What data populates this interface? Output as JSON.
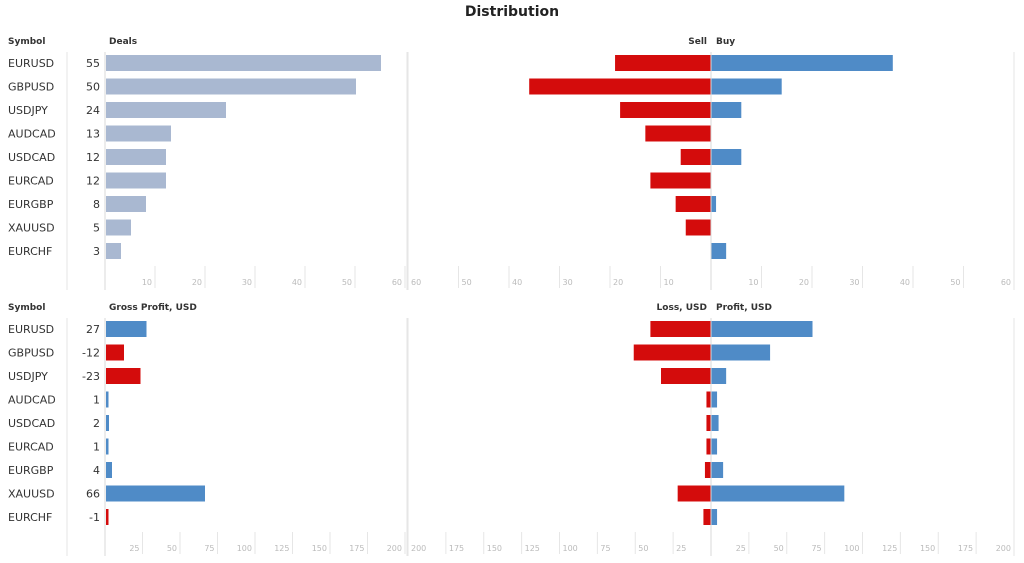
{
  "title": "Distribution",
  "colors": {
    "neutral": "#a9b8d1",
    "positive": "#4f8bc7",
    "negative": "#d40c0c"
  },
  "chart_data": [
    {
      "id": "deals",
      "type": "bar",
      "symbol_header": "Symbol",
      "value_header": "Deals",
      "categories": [
        "EURUSD",
        "GBPUSD",
        "USDJPY",
        "AUDCAD",
        "USDCAD",
        "EURCAD",
        "EURGBP",
        "XAUUSD",
        "EURCHF"
      ],
      "values": [
        55,
        50,
        24,
        13,
        12,
        12,
        8,
        5,
        3
      ],
      "value_labels": [
        "55",
        "50",
        "24",
        "13",
        "12",
        "12",
        "8",
        "5",
        "3"
      ],
      "xlim": [
        0,
        60
      ],
      "ticks": [
        "10",
        "20",
        "30",
        "40",
        "50",
        "60"
      ],
      "tick_values": [
        10,
        20,
        30,
        40,
        50,
        60
      ]
    },
    {
      "id": "sell-buy",
      "type": "bar",
      "left_header": "Sell",
      "right_header": "Buy",
      "categories": [
        "EURUSD",
        "GBPUSD",
        "USDJPY",
        "AUDCAD",
        "USDCAD",
        "EURCAD",
        "EURGBP",
        "XAUUSD",
        "EURCHF"
      ],
      "series": [
        {
          "name": "Sell",
          "values": [
            19,
            36,
            18,
            13,
            6,
            12,
            7,
            5,
            0
          ]
        },
        {
          "name": "Buy",
          "values": [
            36,
            14,
            6,
            0,
            6,
            0,
            1,
            0,
            3
          ]
        }
      ],
      "xlim": [
        0,
        60
      ],
      "left_ticks": [
        "60",
        "50",
        "40",
        "30",
        "20",
        "10"
      ],
      "right_ticks": [
        "10",
        "20",
        "30",
        "40",
        "50",
        "60"
      ],
      "tick_values": [
        10,
        20,
        30,
        40,
        50,
        60
      ]
    },
    {
      "id": "gross-profit",
      "type": "bar",
      "symbol_header": "Symbol",
      "value_header": "Gross Profit, USD",
      "categories": [
        "EURUSD",
        "GBPUSD",
        "USDJPY",
        "AUDCAD",
        "USDCAD",
        "EURCAD",
        "EURGBP",
        "XAUUSD",
        "EURCHF"
      ],
      "values": [
        27,
        -12,
        -23,
        1,
        2,
        1,
        4,
        66,
        -1
      ],
      "value_labels": [
        "27",
        "-12",
        "-23",
        "1",
        "2",
        "1",
        "4",
        "66",
        "-1"
      ],
      "xlim": [
        0,
        200
      ],
      "ticks": [
        "25",
        "50",
        "75",
        "100",
        "125",
        "150",
        "175",
        "200"
      ],
      "tick_values": [
        25,
        50,
        75,
        100,
        125,
        150,
        175,
        200
      ]
    },
    {
      "id": "loss-profit",
      "type": "bar",
      "left_header": "Loss, USD",
      "right_header": "Profit, USD",
      "categories": [
        "EURUSD",
        "GBPUSD",
        "USDJPY",
        "AUDCAD",
        "USDCAD",
        "EURCAD",
        "EURGBP",
        "XAUUSD",
        "EURCHF"
      ],
      "series": [
        {
          "name": "Loss, USD",
          "values": [
            40,
            51,
            33,
            3,
            3,
            3,
            4,
            22,
            5
          ]
        },
        {
          "name": "Profit, USD",
          "values": [
            67,
            39,
            10,
            4,
            5,
            4,
            8,
            88,
            4
          ]
        }
      ],
      "xlim": [
        0,
        200
      ],
      "left_ticks": [
        "200",
        "175",
        "150",
        "125",
        "100",
        "75",
        "50",
        "25"
      ],
      "right_ticks": [
        "25",
        "50",
        "75",
        "100",
        "125",
        "150",
        "175",
        "200"
      ],
      "tick_values": [
        25,
        50,
        75,
        100,
        125,
        150,
        175,
        200
      ]
    }
  ]
}
